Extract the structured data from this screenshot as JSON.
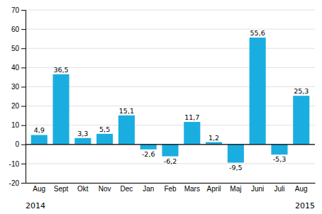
{
  "chart_data": {
    "type": "bar",
    "categories": [
      "Aug",
      "Sept",
      "Okt",
      "Nov",
      "Dec",
      "Jan",
      "Feb",
      "Mars",
      "April",
      "Maj",
      "Juni",
      "Juli",
      "Aug"
    ],
    "values": [
      4.9,
      36.5,
      3.3,
      5.5,
      15.1,
      -2.6,
      -6.2,
      11.7,
      1.2,
      -9.5,
      55.6,
      -5.3,
      25.3
    ],
    "value_labels": [
      "4,9",
      "36,5",
      "3,3",
      "5,5",
      "15,1",
      "-2,6",
      "-6,2",
      "11,7",
      "1,2",
      "-9,5",
      "55,6",
      "-5,3",
      "25,3"
    ],
    "data_labels": true,
    "color": "#1aaee0",
    "ylim": [
      -20,
      70
    ],
    "yticks": [
      -20,
      -10,
      0,
      10,
      20,
      30,
      40,
      50,
      60,
      70
    ],
    "grid": true,
    "annotations": [
      "2014",
      "2015"
    ]
  }
}
